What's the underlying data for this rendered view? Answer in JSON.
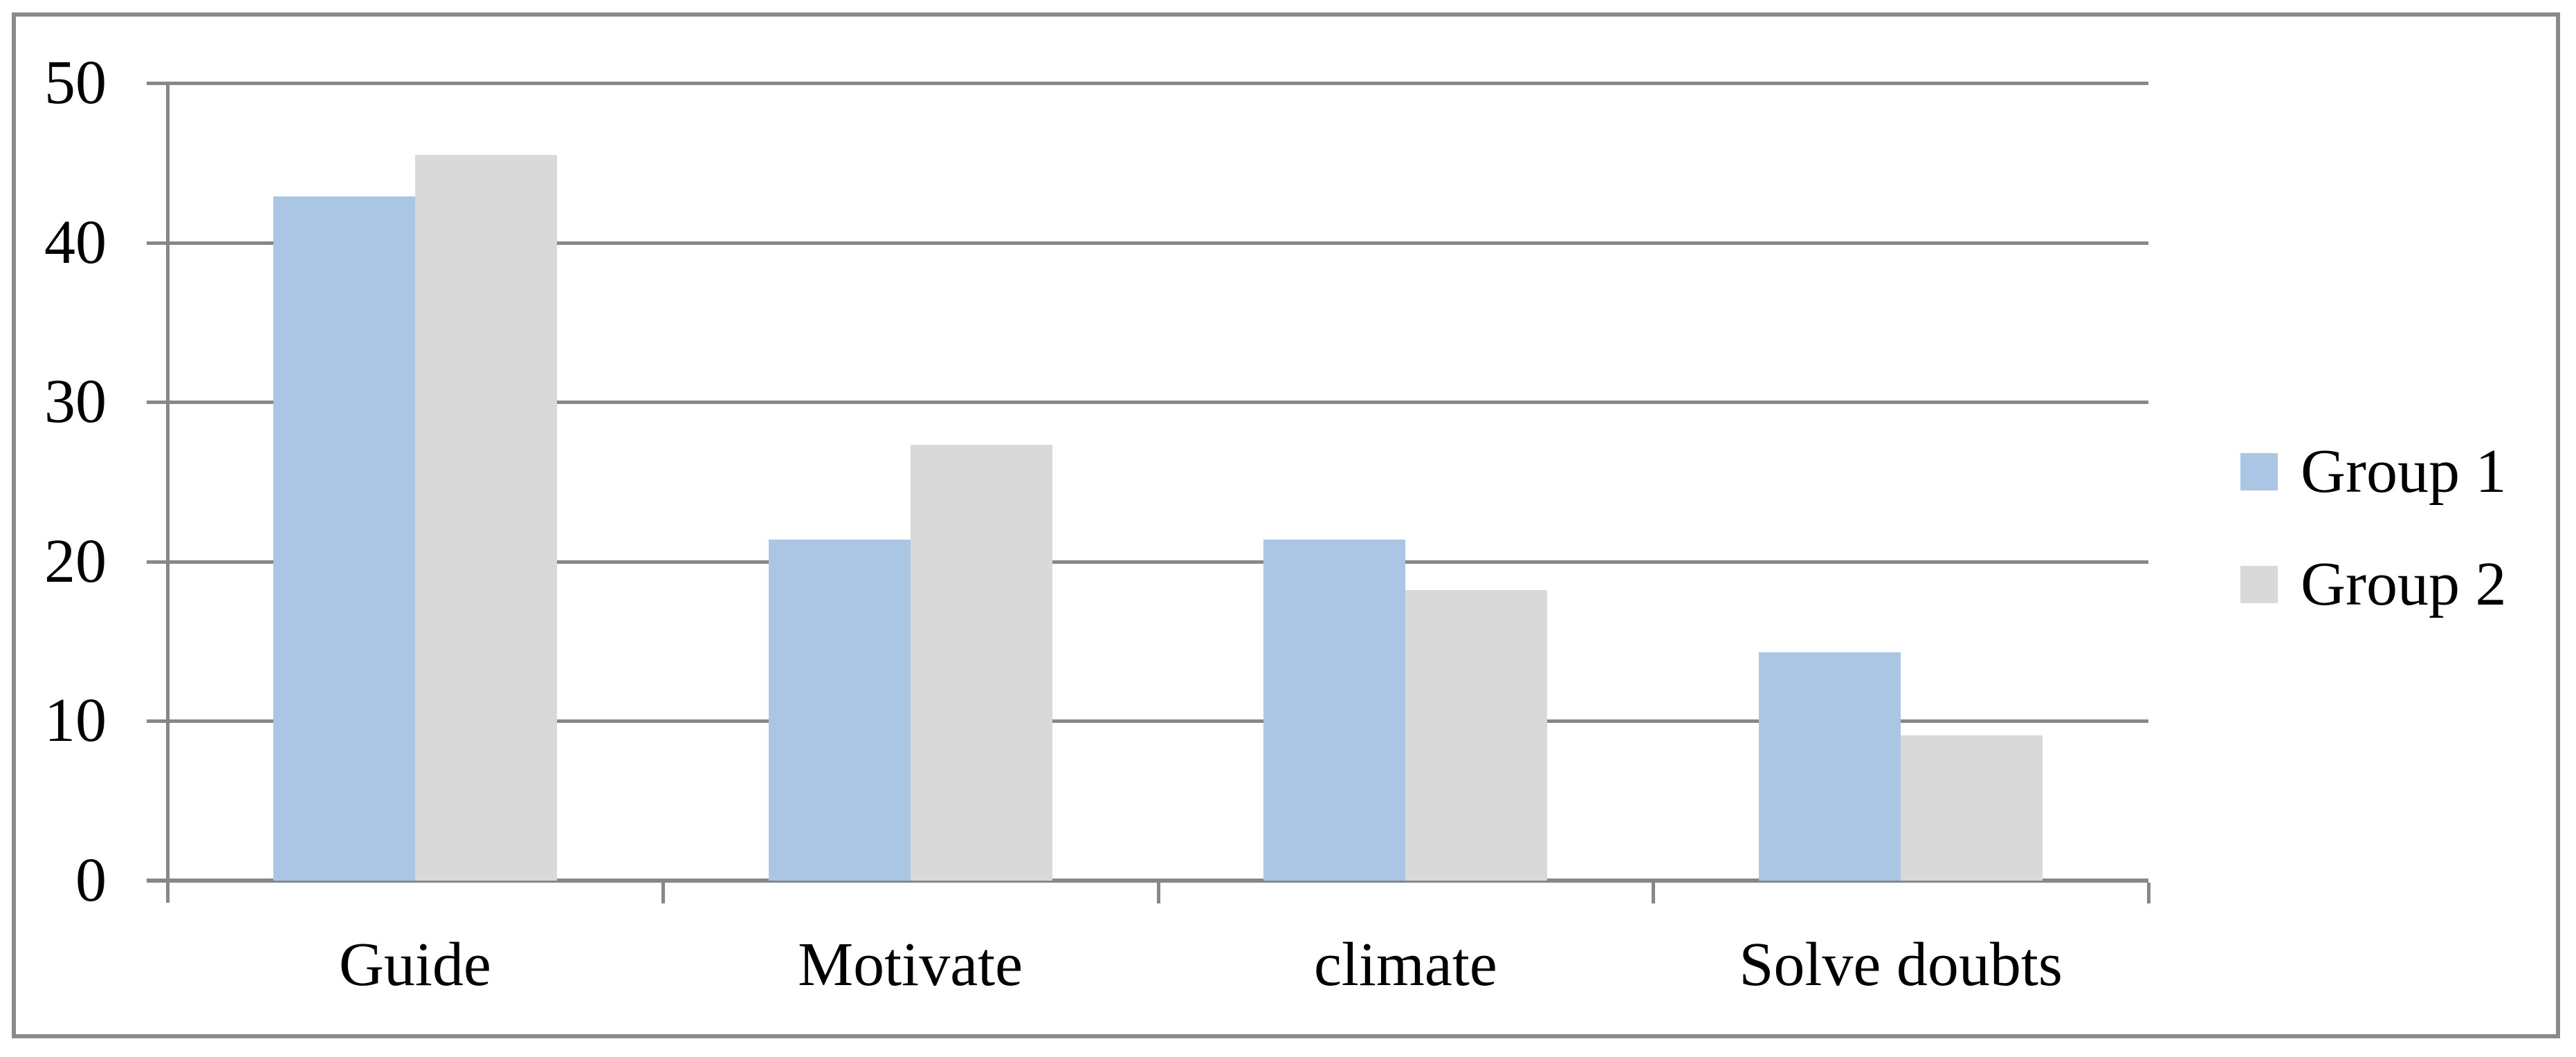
{
  "figure": {
    "background": "#ffffff",
    "border_color": "#8a8a8a"
  },
  "chart_data": {
    "type": "bar",
    "title": "",
    "xlabel": "",
    "ylabel": "",
    "categories": [
      "Guide",
      "Motivate",
      "climate",
      "Solve doubts"
    ],
    "series": [
      {
        "name": "Group 1",
        "color": "#aac6e4",
        "values": [
          42.9,
          21.4,
          21.4,
          14.3
        ]
      },
      {
        "name": "Group 2",
        "color": "#d9d9d9",
        "values": [
          45.5,
          27.3,
          18.2,
          9.1
        ]
      }
    ],
    "ylim": [
      0,
      50
    ],
    "yticks": [
      0,
      10,
      20,
      30,
      40,
      50
    ],
    "y_tick_labels": [
      "0",
      "10",
      "20",
      "30",
      "40",
      "50"
    ],
    "grid": "horizontal",
    "gridline_color": "#878787",
    "axis_color": "#878787",
    "text_color": "#000000",
    "legend_position": "right",
    "legend_labels": [
      "Group 1",
      "Group 2"
    ]
  }
}
